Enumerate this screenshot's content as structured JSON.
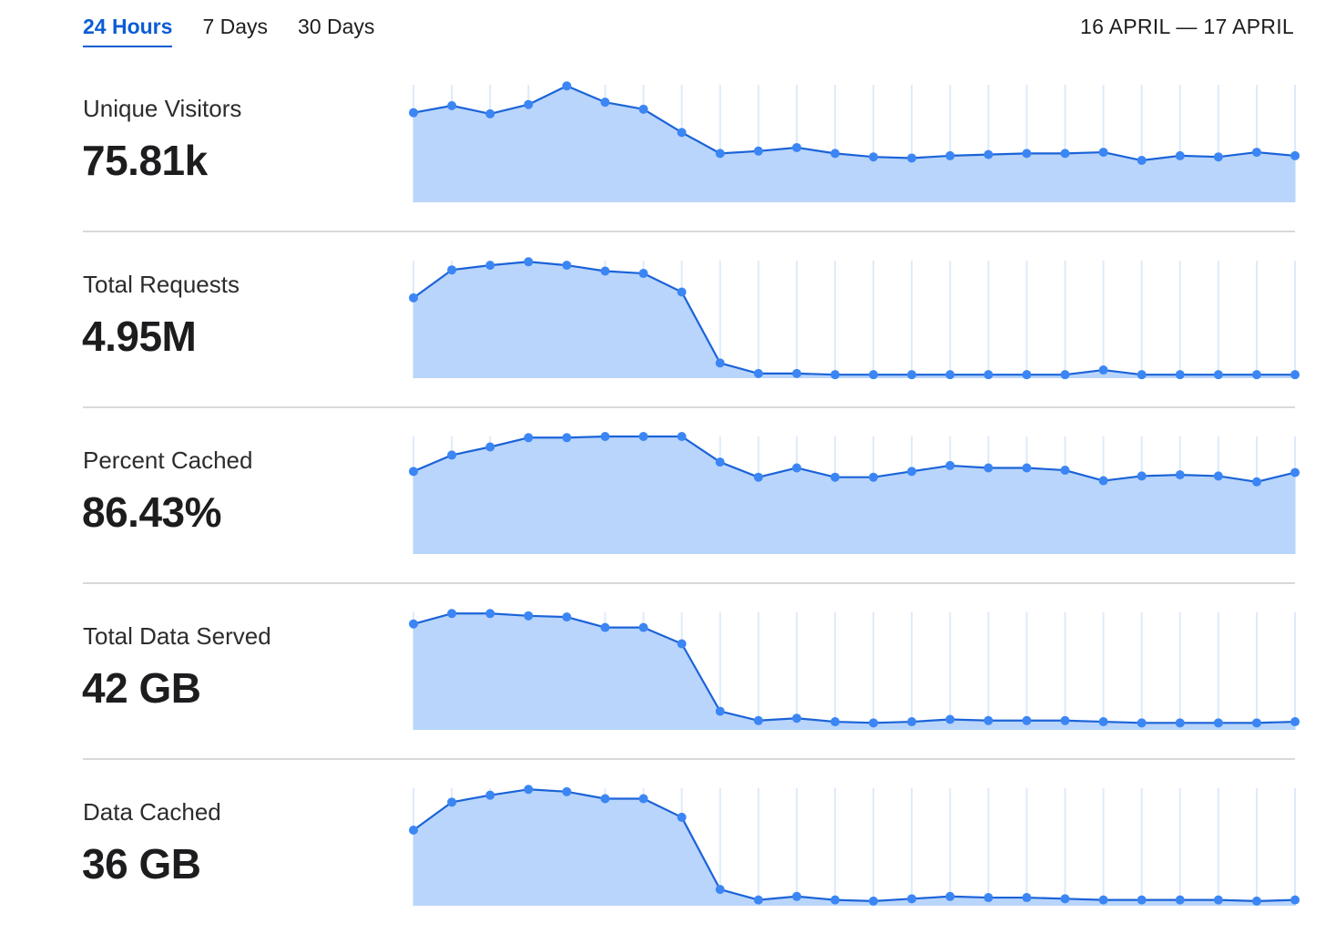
{
  "tabs": [
    {
      "label": "24 Hours",
      "active": true
    },
    {
      "label": "7 Days",
      "active": false
    },
    {
      "label": "30 Days",
      "active": false
    }
  ],
  "date_range": "16 APRIL — 17 APRIL",
  "colors": {
    "accent": "#0b5cd5",
    "fill": "#b9d5fb",
    "line": "#1b63d8",
    "point": "#3b86f4",
    "grid": "#dcebfb"
  },
  "metrics": [
    {
      "label": "Unique Visitors",
      "value": "75.81k",
      "series": [
        77,
        83,
        76,
        84,
        100,
        86,
        80,
        60,
        42,
        44,
        47,
        42,
        39,
        38,
        40,
        41,
        42,
        42,
        43,
        36,
        40,
        39,
        43,
        40
      ]
    },
    {
      "label": "Total Requests",
      "value": "4.95M",
      "series": [
        69,
        93,
        97,
        100,
        97,
        92,
        90,
        74,
        13,
        4,
        4,
        3,
        3,
        3,
        3,
        3,
        3,
        3,
        7,
        3,
        3,
        3,
        3,
        3
      ]
    },
    {
      "label": "Percent Cached",
      "value": "86.43%",
      "series": [
        71,
        85,
        92,
        100,
        100,
        101,
        101,
        101,
        79,
        66,
        74,
        66,
        66,
        71,
        76,
        74,
        74,
        72,
        63,
        67,
        68,
        67,
        62,
        70
      ]
    },
    {
      "label": "Total Data Served",
      "value": "42 GB",
      "series": [
        91,
        100,
        100,
        98,
        97,
        88,
        88,
        74,
        16,
        8,
        10,
        7,
        6,
        7,
        9,
        8,
        8,
        8,
        7,
        6,
        6,
        6,
        6,
        7
      ]
    },
    {
      "label": "Data Cached",
      "value": "36 GB",
      "series": [
        65,
        89,
        95,
        100,
        98,
        92,
        92,
        76,
        14,
        5,
        8,
        5,
        4,
        6,
        8,
        7,
        7,
        6,
        5,
        5,
        5,
        5,
        4,
        5
      ]
    }
  ]
}
